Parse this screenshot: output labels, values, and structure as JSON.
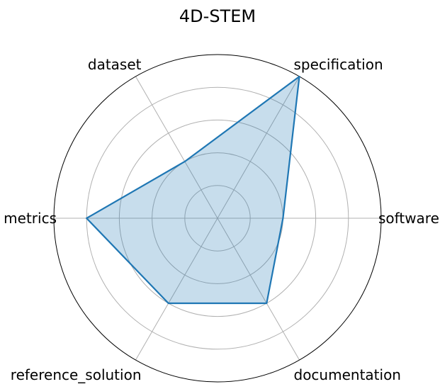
{
  "chart_data": {
    "type": "radar",
    "title": "4D-STEM",
    "axes": [
      "software",
      "specification",
      "dataset",
      "metrics",
      "reference_solution",
      "documentation"
    ],
    "rlim": [
      0,
      5
    ],
    "grid_rings": [
      1,
      2,
      3,
      4
    ],
    "grid": true,
    "series": [
      {
        "values": [
          2,
          5,
          2,
          4,
          3,
          3
        ]
      }
    ],
    "colors": {
      "line": "#1f77b4",
      "fill": "#1f77b4",
      "fill_opacity": 0.25
    }
  }
}
